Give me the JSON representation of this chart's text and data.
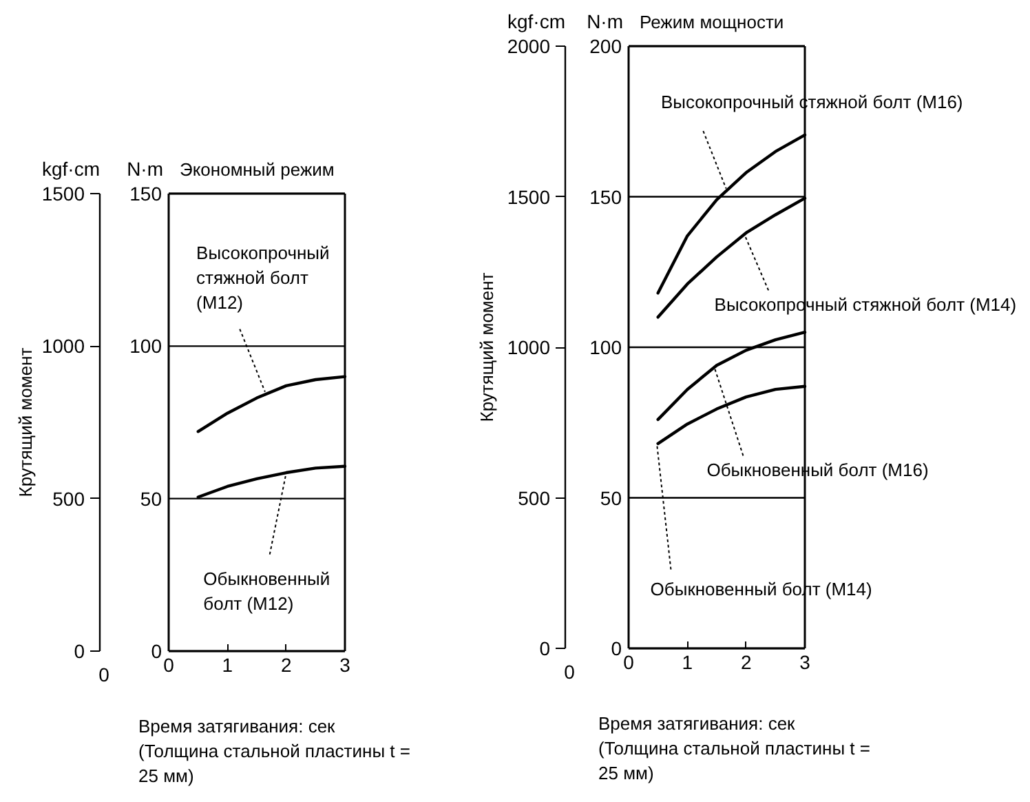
{
  "chart_data": [
    {
      "type": "line",
      "title": "Экономный режим",
      "xlabel": "Время затягивания: сек\n(Толщина стальной пластины t =\n25 мм)",
      "ylabel": "N·m",
      "y2label": "kgf·cm",
      "x": [
        0.5,
        1,
        1.5,
        2,
        2.5,
        3
      ],
      "xlim": [
        0,
        3
      ],
      "xticks": [
        0,
        1,
        2,
        3
      ],
      "ylim": [
        0,
        150
      ],
      "yticks": [
        0,
        50,
        100,
        150
      ],
      "y2lim": [
        0,
        1500
      ],
      "y2ticks": [
        0,
        500,
        1000,
        1500
      ],
      "grid": "y",
      "line_style": "solid",
      "series": [
        {
          "color": "#000000",
          "values": [
            72,
            78,
            83,
            87,
            89,
            90
          ]
        },
        {
          "color": "#000000",
          "values": [
            50.5,
            54,
            56.5,
            58.5,
            60,
            60.6
          ]
        }
      ],
      "annotations": [
        {
          "text": "Высокопрочный\nстяжной болт\n(M12)",
          "x": 1.64,
          "y": 85
        },
        {
          "text": "Обыкновенный\nболт (M12)",
          "x": 2.0,
          "y": 58.4
        },
        "Крутящий момент",
        "0"
      ]
    },
    {
      "type": "line",
      "title": "Режим мощности",
      "xlabel": "Время затягивания: сек\n(Толщина стальной пластины t =\n25 мм)",
      "ylabel": "N·m",
      "y2label": "kgf·cm",
      "x": [
        0.5,
        1,
        1.5,
        2,
        2.5,
        3
      ],
      "xlim": [
        0,
        3
      ],
      "xticks": [
        0,
        1,
        2,
        3
      ],
      "ylim": [
        0,
        200
      ],
      "yticks": [
        0,
        50,
        100,
        150,
        200
      ],
      "y2lim": [
        0,
        2000
      ],
      "y2ticks": [
        0,
        500,
        1000,
        1500,
        2000
      ],
      "grid": "y",
      "line_style": "solid",
      "series": [
        {
          "color": "#000000",
          "values": [
            118,
            137,
            149,
            158,
            165,
            170.5
          ]
        },
        {
          "color": "#000000",
          "values": [
            110,
            121,
            130,
            138,
            144,
            149.5
          ]
        },
        {
          "color": "#000000",
          "values": [
            76,
            86,
            94,
            99,
            102.5,
            105
          ]
        },
        {
          "color": "#000000",
          "values": [
            68,
            74.5,
            79.5,
            83.5,
            86,
            87
          ]
        }
      ],
      "annotations": [
        {
          "text": "Высокопрочный стяжной болт (M16)",
          "x": 1.66,
          "y": 152.7
        },
        {
          "text": "Высокопрочный стяжной болт (M14)",
          "x": 1.97,
          "y": 137.5
        },
        {
          "text": "Обыкновенный болт (M16)",
          "x": 1.46,
          "y": 93.3
        },
        {
          "text": "Обыкновенный болт (M14)",
          "x": 0.48,
          "y": 68.1
        },
        "Крутящий момент",
        "0"
      ]
    }
  ]
}
